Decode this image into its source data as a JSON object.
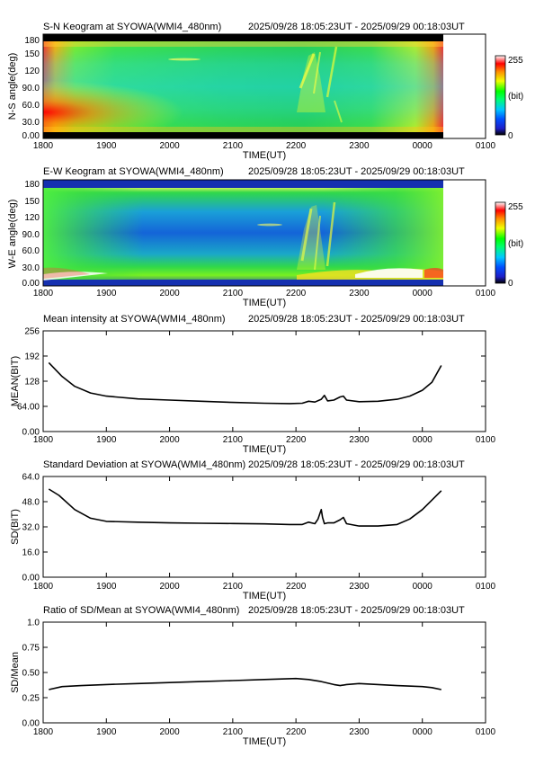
{
  "time_range": "2025/09/28 18:05:23UT - 2025/09/29 00:18:03UT",
  "colorbar": {
    "max_label": "255",
    "unit_label": "(bit)",
    "min_label": "0"
  },
  "chart_data": [
    {
      "type": "heatmap",
      "title": "S-N Keogram at SYOWA(WMI4_480nm)",
      "xlabel": "TIME(UT)",
      "ylabel": "N-S angle(deg)",
      "x_ticks": [
        "1800",
        "1900",
        "2000",
        "2100",
        "2200",
        "2300",
        "0000",
        "0100"
      ],
      "y_ticks": [
        "0.00",
        "30.0",
        "60.0",
        "90.0",
        "120",
        "150",
        "180"
      ],
      "ylim": [
        0,
        180
      ],
      "colorscale": "rainbow, 0 (bit) = black/blue to 255 (bit) = red/white",
      "zlim": [
        0,
        255
      ]
    },
    {
      "type": "heatmap",
      "title": "E-W Keogram at SYOWA(WMI4_480nm)",
      "xlabel": "TIME(UT)",
      "ylabel": "W-E angle(deg)",
      "x_ticks": [
        "1800",
        "1900",
        "2000",
        "2100",
        "2200",
        "2300",
        "0000",
        "0100"
      ],
      "y_ticks": [
        "0.00",
        "30.0",
        "60.0",
        "90.0",
        "120",
        "150",
        "180"
      ],
      "ylim": [
        0,
        180
      ],
      "colorscale": "rainbow, 0 (bit) = black/blue to 255 (bit) = red/white",
      "zlim": [
        0,
        255
      ]
    },
    {
      "type": "line",
      "title": "Mean intensity at SYOWA(WMI4_480nm)",
      "xlabel": "TIME(UT)",
      "ylabel": "MEAN(BIT)",
      "x_ticks": [
        "1800",
        "1900",
        "2000",
        "2100",
        "2200",
        "2300",
        "0000",
        "0100"
      ],
      "y_ticks": [
        "0.00",
        "64.00",
        "128",
        "192",
        "256"
      ],
      "xlim_hours": [
        18,
        25
      ],
      "ylim": [
        0,
        256
      ],
      "x": [
        18.09,
        18.3,
        18.5,
        18.75,
        19.0,
        19.5,
        20.0,
        20.5,
        21.0,
        21.5,
        21.9,
        22.1,
        22.2,
        22.3,
        22.4,
        22.45,
        22.5,
        22.6,
        22.7,
        22.75,
        22.8,
        23.0,
        23.3,
        23.6,
        23.8,
        24.0,
        24.15,
        24.3
      ],
      "y": [
        175,
        140,
        115,
        98,
        90,
        83,
        80,
        77,
        74,
        72,
        71,
        72,
        77,
        75,
        82,
        92,
        78,
        80,
        88,
        90,
        80,
        76,
        77,
        82,
        90,
        105,
        125,
        168
      ]
    },
    {
      "type": "line",
      "title": "Standard Deviation at SYOWA(WMI4_480nm)",
      "xlabel": "TIME(UT)",
      "ylabel": "SD(BIT)",
      "x_ticks": [
        "1800",
        "1900",
        "2000",
        "2100",
        "2200",
        "2300",
        "0000",
        "0100"
      ],
      "y_ticks": [
        "0.00",
        "16.0",
        "32.0",
        "48.0",
        "64.0"
      ],
      "xlim_hours": [
        18,
        25
      ],
      "ylim": [
        0,
        64
      ],
      "x": [
        18.09,
        18.25,
        18.5,
        18.75,
        19.0,
        19.5,
        20.0,
        20.5,
        21.0,
        21.5,
        21.9,
        22.1,
        22.2,
        22.3,
        22.35,
        22.4,
        22.42,
        22.45,
        22.5,
        22.6,
        22.7,
        22.75,
        22.8,
        23.0,
        23.3,
        23.6,
        23.8,
        24.0,
        24.15,
        24.3
      ],
      "y": [
        56,
        52,
        43,
        37.5,
        35.5,
        35,
        34.5,
        34.3,
        34.1,
        33.9,
        33.5,
        33.5,
        35,
        34,
        37,
        43,
        38,
        34,
        34.5,
        34.5,
        36.5,
        38,
        34,
        32.5,
        32.5,
        33.5,
        37,
        43,
        49,
        55
      ]
    },
    {
      "type": "line",
      "title": "Ratio of SD/Mean at SYOWA(WMI4_480nm)",
      "xlabel": "TIME(UT)",
      "ylabel": "SD/Mean",
      "x_ticks": [
        "1800",
        "1900",
        "2000",
        "2100",
        "2200",
        "2300",
        "0000",
        "0100"
      ],
      "y_ticks": [
        "0.00",
        "0.25",
        "0.50",
        "0.75",
        "1.0"
      ],
      "xlim_hours": [
        18,
        25
      ],
      "ylim": [
        0,
        1
      ],
      "x": [
        18.09,
        18.3,
        18.6,
        19.0,
        19.5,
        20.0,
        20.5,
        21.0,
        21.5,
        22.0,
        22.2,
        22.4,
        22.6,
        22.7,
        22.8,
        23.0,
        23.3,
        23.6,
        24.0,
        24.15,
        24.3
      ],
      "y": [
        0.33,
        0.36,
        0.37,
        0.38,
        0.39,
        0.4,
        0.41,
        0.42,
        0.43,
        0.44,
        0.43,
        0.41,
        0.38,
        0.37,
        0.38,
        0.39,
        0.38,
        0.37,
        0.36,
        0.35,
        0.33
      ]
    }
  ]
}
